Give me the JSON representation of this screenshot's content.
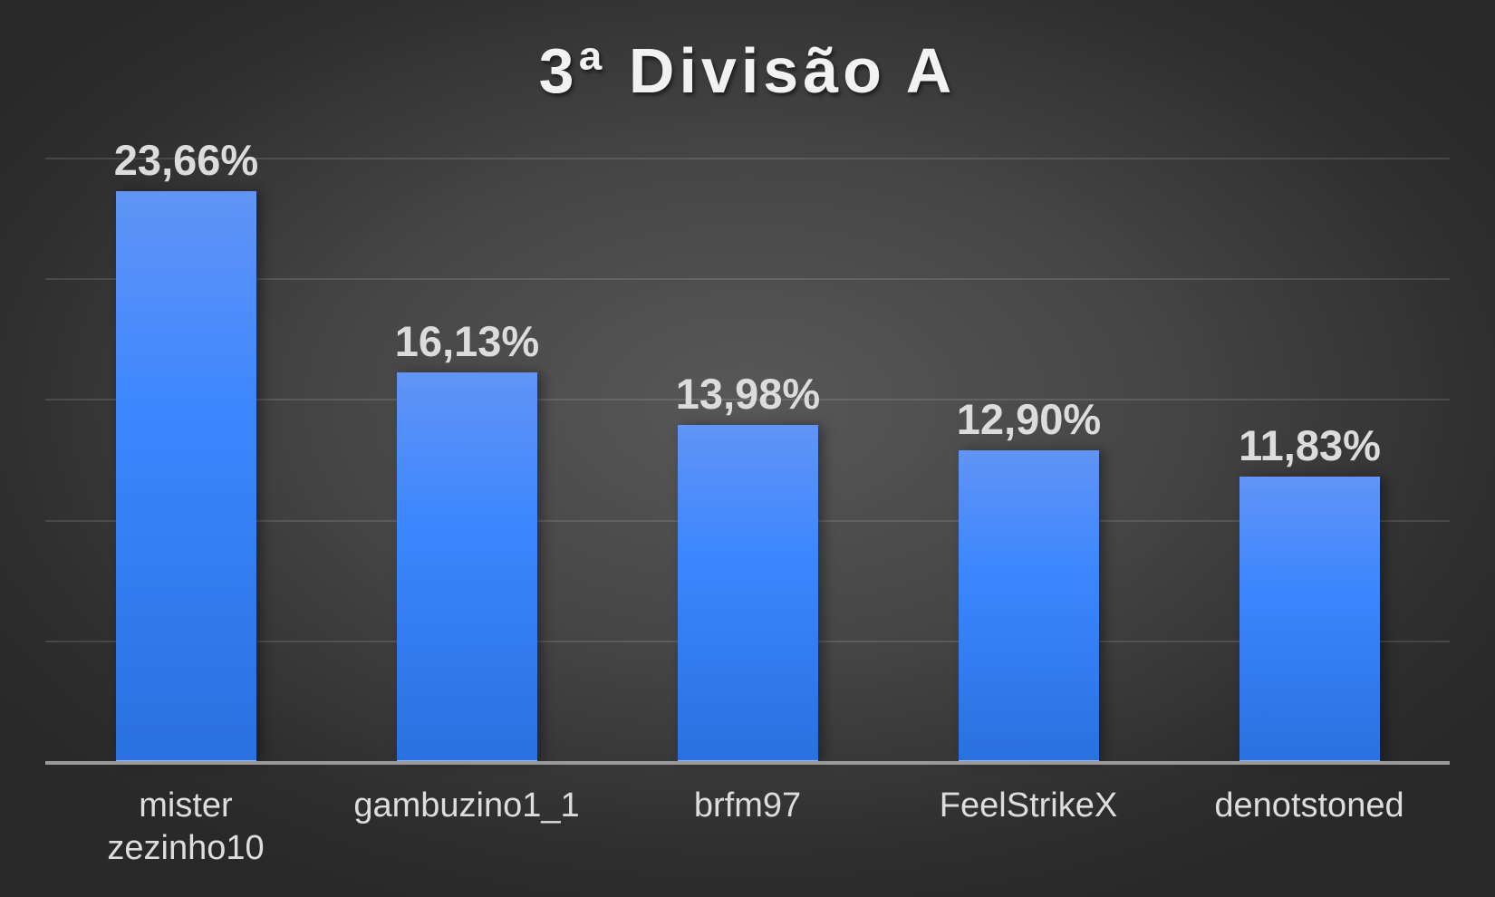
{
  "chart_data": {
    "type": "bar",
    "title": "3ª Divisão A",
    "xlabel": "",
    "ylabel": "",
    "ylim": [
      0,
      25
    ],
    "grid": true,
    "gridline_values": [
      5,
      10,
      15,
      20,
      25
    ],
    "categories": [
      "mister zezinho10",
      "gambuzino1_1",
      "brfm97",
      "FeelStrikeX",
      "denotstoned"
    ],
    "category_lines": [
      [
        "mister",
        "zezinho10"
      ],
      [
        "gambuzino1_1"
      ],
      [
        "brfm97"
      ],
      [
        "FeelStrikeX"
      ],
      [
        "denotstoned"
      ]
    ],
    "values": [
      23.66,
      16.13,
      13.98,
      12.9,
      11.83
    ],
    "value_labels": [
      "23,66%",
      "16,13%",
      "13,98%",
      "12,90%",
      "11,83%"
    ],
    "legend": null,
    "colors": {
      "bar_top": "#6194f6",
      "bar_bottom": "#2a70e0",
      "background": "#3a3a3a",
      "text": "#dcdcdc"
    }
  }
}
